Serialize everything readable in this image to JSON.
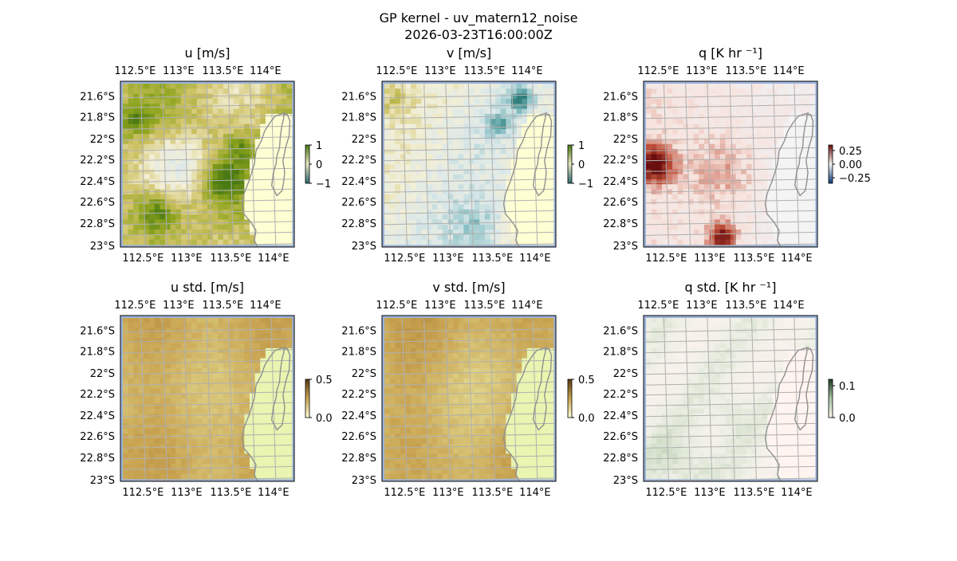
{
  "figure": {
    "title_line1": "GP kernel - uv_matern12_noise",
    "title_line2": "2026-03-23T16:00:00Z"
  },
  "chart_data": [
    {
      "type": "heatmap",
      "title": "u [m/s]",
      "colormap": [
        "#4a7a12",
        "#8fa51f",
        "#cfc266",
        "#f3efd6",
        "#dde9ea",
        "#86bfc3",
        "#2f7e7a"
      ],
      "field_style": "u",
      "colorbar": {
        "ticks": [
          1,
          0,
          -1
        ],
        "tick_labels": [
          "1",
          "0",
          "−1"
        ],
        "vmin": -1,
        "vmax": 1,
        "colors": [
          "#4a7a12",
          "#e8e6c0",
          "#2a6a6e"
        ]
      },
      "x_ticks": [
        "112.5°E",
        "113°E",
        "113.5°E",
        "114°E"
      ],
      "y_ticks": [
        "21.6°S",
        "21.8°S",
        "22°S",
        "22.2°S",
        "22.4°S",
        "22.6°S",
        "22.8°S",
        "23°S"
      ],
      "xlim": [
        112.45,
        114.2
      ],
      "ylim": [
        -23.02,
        -21.5
      ],
      "grid": true
    },
    {
      "type": "heatmap",
      "title": "v [m/s]",
      "colormap": [
        "#4a7a12",
        "#8fa51f",
        "#cfc266",
        "#f3efd6",
        "#dde9ea",
        "#86bfc3",
        "#2f7e7a"
      ],
      "field_style": "v",
      "colorbar": {
        "ticks": [
          1,
          0,
          -1
        ],
        "tick_labels": [
          "1",
          "0",
          "−1"
        ],
        "vmin": -1,
        "vmax": 1,
        "colors": [
          "#4a7a12",
          "#e8e6c0",
          "#2a6a6e"
        ]
      },
      "x_ticks": [
        "112.5°E",
        "113°E",
        "113.5°E",
        "114°E"
      ],
      "y_ticks": [
        "21.6°S",
        "21.8°S",
        "22°S",
        "22.2°S",
        "22.4°S",
        "22.6°S",
        "22.8°S",
        "23°S"
      ],
      "xlim": [
        112.45,
        114.2
      ],
      "ylim": [
        -23.02,
        -21.5
      ],
      "grid": true
    },
    {
      "type": "heatmap",
      "title": "q [K hr ⁻¹]",
      "colormap": [
        "#0d3a7a",
        "#2a7fc2",
        "#8cc2e8",
        "#eef3f8",
        "#f7e3dd",
        "#c0503a",
        "#6a0f0f"
      ],
      "field_style": "q",
      "colorbar": {
        "ticks": [
          0.25,
          0.0,
          -0.25
        ],
        "tick_labels": [
          "0.25",
          "0.00",
          "−0.25"
        ],
        "vmin": -0.35,
        "vmax": 0.35,
        "colors": [
          "#6a0f0f",
          "#f4f4f4",
          "#0d3a7a"
        ]
      },
      "x_ticks": [
        "112.5°E",
        "113°E",
        "113.5°E",
        "114°E"
      ],
      "y_ticks": [
        "21.6°S",
        "21.8°S",
        "22°S",
        "22.2°S",
        "22.4°S",
        "22.6°S",
        "22.8°S",
        "23°S"
      ],
      "xlim": [
        112.45,
        114.2
      ],
      "ylim": [
        -23.02,
        -21.5
      ],
      "grid": true
    },
    {
      "type": "heatmap",
      "title": "u std. [m/s]",
      "colormap": [
        "#ffffd4",
        "#e9e7a2",
        "#c9a552",
        "#a06b2a"
      ],
      "field_style": "ustd",
      "colorbar": {
        "ticks": [
          0.5,
          0.0
        ],
        "tick_labels": [
          "0.5",
          "0.0"
        ],
        "vmin": 0,
        "vmax": 0.5,
        "colors": [
          "#5a3a14",
          "#c9a552",
          "#ffffd4"
        ]
      },
      "x_ticks": [
        "112.5°E",
        "113°E",
        "113.5°E",
        "114°E"
      ],
      "y_ticks": [
        "21.6°S",
        "21.8°S",
        "22°S",
        "22.2°S",
        "22.4°S",
        "22.6°S",
        "22.8°S",
        "23°S"
      ],
      "xlim": [
        112.45,
        114.2
      ],
      "ylim": [
        -23.02,
        -21.5
      ],
      "grid": true
    },
    {
      "type": "heatmap",
      "title": "v std. [m/s]",
      "colormap": [
        "#ffffd4",
        "#e9e7a2",
        "#c9a552",
        "#a06b2a"
      ],
      "field_style": "vstd",
      "colorbar": {
        "ticks": [
          0.5,
          0.0
        ],
        "tick_labels": [
          "0.5",
          "0.0"
        ],
        "vmin": 0,
        "vmax": 0.5,
        "colors": [
          "#5a3a14",
          "#c9a552",
          "#ffffd4"
        ]
      },
      "x_ticks": [
        "112.5°E",
        "113°E",
        "113.5°E",
        "114°E"
      ],
      "y_ticks": [
        "21.6°S",
        "21.8°S",
        "22°S",
        "22.2°S",
        "22.4°S",
        "22.6°S",
        "22.8°S",
        "23°S"
      ],
      "xlim": [
        112.45,
        114.2
      ],
      "ylim": [
        -23.02,
        -21.5
      ],
      "grid": true
    },
    {
      "type": "heatmap",
      "title": "q std. [K hr ⁻¹]",
      "colormap": [
        "#fdf3ee",
        "#eef0e6",
        "#c6d8bd",
        "#8fb58a"
      ],
      "field_style": "qstd",
      "colorbar": {
        "ticks": [
          0.1,
          0.0
        ],
        "tick_labels": [
          "0.1",
          "0.0"
        ],
        "vmin": 0,
        "vmax": 0.12,
        "colors": [
          "#1c3d28",
          "#a7c2a2",
          "#fff4f0"
        ]
      },
      "x_ticks": [
        "112.5°E",
        "113°E",
        "113.5°E",
        "114°E"
      ],
      "y_ticks": [
        "21.6°S",
        "21.8°S",
        "22°S",
        "22.2°S",
        "22.4°S",
        "22.6°S",
        "22.8°S",
        "23°S"
      ],
      "xlim": [
        112.45,
        114.2
      ],
      "ylim": [
        -23.02,
        -21.5
      ],
      "grid": true
    }
  ],
  "colors": {
    "ocean": "#9bb4dc",
    "coastline": "#909090",
    "gridline": "#b0b0b0"
  }
}
